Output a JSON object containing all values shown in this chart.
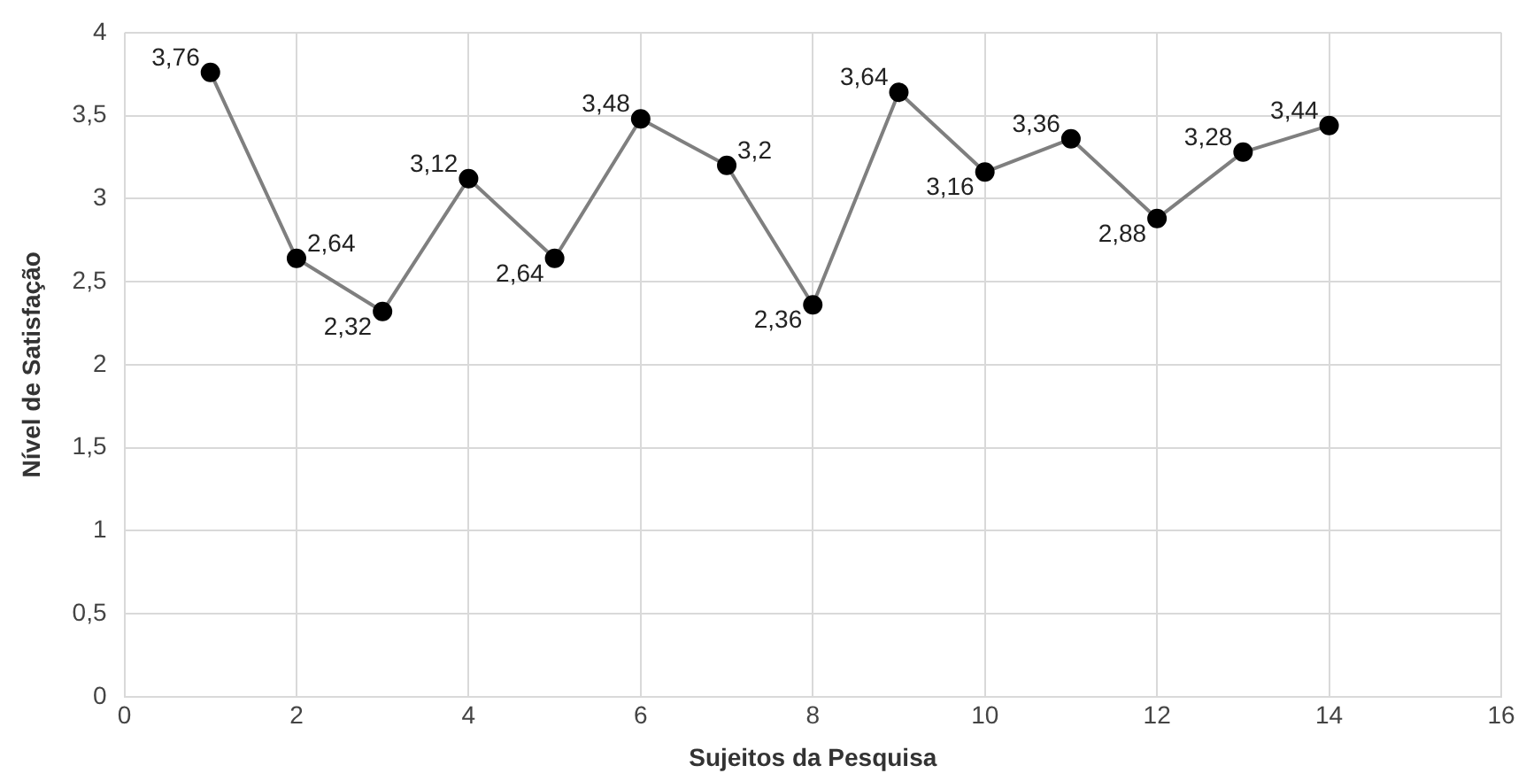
{
  "chart_data": {
    "type": "line",
    "xlabel": "Sujeitos da Pesquisa",
    "ylabel": "Nível de Satisfação",
    "x": [
      1,
      2,
      3,
      4,
      5,
      6,
      7,
      8,
      9,
      10,
      11,
      12,
      13,
      14
    ],
    "series": [
      {
        "color": "#7f7f7f",
        "values": [
          3.76,
          2.64,
          2.32,
          3.12,
          2.64,
          3.48,
          3.2,
          2.36,
          3.64,
          3.16,
          3.36,
          2.88,
          3.28,
          3.44
        ],
        "value_labels": [
          "3,76",
          "2,64",
          "2,32",
          "3,12",
          "2,64",
          "3,48",
          "3,2",
          "2,36",
          "3,64",
          "3,16",
          "3,36",
          "2,88",
          "3,28",
          "3,44"
        ]
      }
    ],
    "xlim": [
      0,
      16
    ],
    "xticks": [
      0,
      2,
      4,
      6,
      8,
      10,
      12,
      14,
      16
    ],
    "ylim": [
      0,
      4
    ],
    "yticks": [
      0,
      {
        "value": 0.5,
        "label": "0,5"
      },
      1,
      {
        "value": 1.5,
        "label": "1,5"
      },
      2,
      {
        "value": 2.5,
        "label": "2,5"
      },
      3,
      {
        "value": 3.5,
        "label": "3,5"
      },
      4
    ],
    "grid": true,
    "legend": false,
    "marker": "circle",
    "line_style": "solid"
  }
}
